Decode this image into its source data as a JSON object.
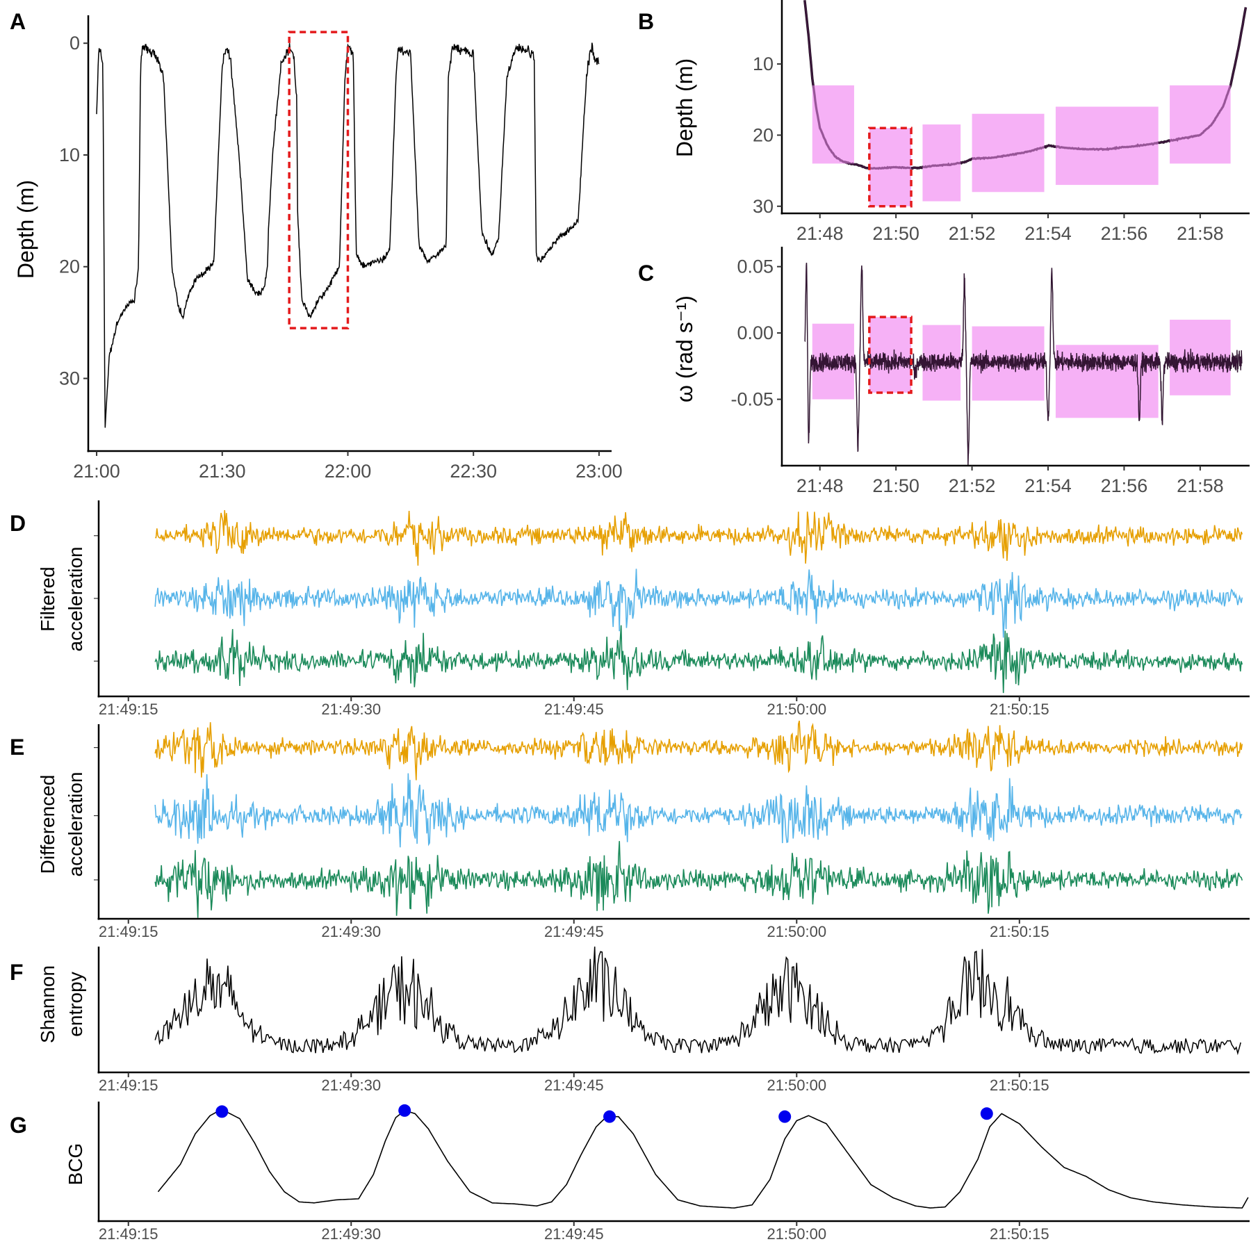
{
  "colors": {
    "ink": "#000000",
    "tick_text": "#4d4d4d",
    "highlight_fill": "#f4a3f4",
    "highlight_border": "#e41a1c",
    "accel_x": "#e69f00",
    "accel_y": "#56b4e9",
    "accel_z": "#1b8a5a",
    "peak_marker": "#0000ee"
  },
  "chart_data": [
    {
      "id": "A",
      "panel_label": "A",
      "type": "line",
      "xlabel": "",
      "ylabel": "Depth (m)",
      "y_reversed": true,
      "x_range_minutes": [
        1258,
        1383
      ],
      "ylim": [
        -2.5,
        36.5
      ],
      "x_ticks": [
        {
          "v": 1260,
          "label": "21:00"
        },
        {
          "v": 1290,
          "label": "21:30"
        },
        {
          "v": 1320,
          "label": "22:00"
        },
        {
          "v": 1350,
          "label": "22:30"
        },
        {
          "v": 1380,
          "label": "23:00"
        }
      ],
      "y_ticks": [
        {
          "v": 0,
          "label": "0"
        },
        {
          "v": 10,
          "label": "10"
        },
        {
          "v": 20,
          "label": "20"
        },
        {
          "v": 30,
          "label": "30"
        }
      ],
      "highlight_box": {
        "x": [
          1306,
          1320
        ],
        "y": [
          -1,
          25.5
        ]
      },
      "series": [
        {
          "x_minutes": [
            1260,
            1260.5,
            1261,
            1261.5,
            1262,
            1263,
            1265,
            1267,
            1269,
            1270,
            1270.5,
            1271,
            1272,
            1274,
            1276,
            1278,
            1279.5,
            1280.5,
            1281,
            1282,
            1284,
            1286,
            1288,
            1290,
            1290.8,
            1291,
            1292,
            1294,
            1296,
            1298,
            1300,
            1300.8,
            1301,
            1302,
            1304,
            1306,
            1306.5,
            1307,
            1307.8,
            1308,
            1309,
            1311,
            1313,
            1315,
            1318,
            1319.3,
            1320,
            1320.5,
            1321,
            1321.3,
            1322,
            1324,
            1326,
            1328,
            1330,
            1331.5,
            1332,
            1333,
            1335,
            1337,
            1339,
            1341,
            1343.5,
            1344,
            1345,
            1347,
            1350,
            1352,
            1354.5,
            1355,
            1356,
            1358,
            1360,
            1362,
            1364.5,
            1365,
            1366,
            1368,
            1370,
            1372,
            1375,
            1377,
            1378,
            1378.5,
            1379,
            1380
          ],
          "depth_m": [
            6.2,
            0.5,
            0.8,
            2,
            34.5,
            28,
            25,
            23.5,
            23,
            20,
            2,
            0.5,
            0.5,
            1,
            3,
            20,
            23.5,
            24.5,
            24,
            22.5,
            21,
            20.5,
            19.5,
            2,
            0.5,
            0.5,
            1.5,
            10,
            21,
            22.5,
            22,
            20,
            17,
            10,
            2,
            0.5,
            0.8,
            1,
            5,
            15,
            23,
            24.5,
            23,
            22,
            20,
            3,
            0.5,
            0.5,
            0.8,
            1,
            19,
            20,
            19.5,
            19.5,
            18.5,
            3,
            0.5,
            0.5,
            1,
            18,
            19.5,
            19,
            18,
            3,
            0.5,
            0.5,
            1,
            17,
            19,
            18.5,
            17.5,
            3,
            0.5,
            0.5,
            1,
            19,
            19.5,
            18.5,
            17.5,
            17,
            16,
            3,
            0.5,
            0.5,
            1.5,
            1.5
          ]
        }
      ]
    },
    {
      "id": "B",
      "panel_label": "B",
      "type": "line",
      "xlabel": "",
      "ylabel": "Depth (m)",
      "y_reversed": true,
      "x_range_minutes": [
        1307,
        1319.3
      ],
      "ylim": [
        1,
        31
      ],
      "x_ticks": [
        {
          "v": 1308,
          "label": "21:48"
        },
        {
          "v": 1310,
          "label": "21:50"
        },
        {
          "v": 1312,
          "label": "21:52"
        },
        {
          "v": 1314,
          "label": "21:54"
        },
        {
          "v": 1316,
          "label": "21:56"
        },
        {
          "v": 1318,
          "label": "21:58"
        }
      ],
      "y_ticks": [
        {
          "v": 10,
          "label": "10"
        },
        {
          "v": 20,
          "label": "20"
        },
        {
          "v": 30,
          "label": "30"
        }
      ],
      "shaded_windows": [
        {
          "x": [
            1307.8,
            1308.9
          ],
          "y": [
            13,
            24
          ]
        },
        {
          "x": [
            1309.3,
            1310.4
          ],
          "y": [
            19,
            30
          ]
        },
        {
          "x": [
            1310.7,
            1311.7
          ],
          "y": [
            18.5,
            29.3
          ]
        },
        {
          "x": [
            1312,
            1313.9
          ],
          "y": [
            17,
            28
          ]
        },
        {
          "x": [
            1314.2,
            1316.9
          ],
          "y": [
            16,
            27
          ]
        },
        {
          "x": [
            1317.2,
            1318.8
          ],
          "y": [
            13,
            24
          ]
        }
      ],
      "highlight_box": {
        "x": [
          1309.3,
          1310.4
        ],
        "y": [
          19,
          30
        ]
      },
      "series": [
        {
          "x_minutes": [
            1307.6,
            1307.7,
            1307.8,
            1307.9,
            1308,
            1308.2,
            1308.4,
            1308.6,
            1308.8,
            1309,
            1309.2,
            1309.5,
            1310,
            1310.3,
            1310.6,
            1311,
            1311.5,
            1311.8,
            1312,
            1312.5,
            1313,
            1313.5,
            1314,
            1314.5,
            1315,
            1315.5,
            1316,
            1316.5,
            1317,
            1317.5,
            1318,
            1318.3,
            1318.6,
            1318.8,
            1319,
            1319.2
          ],
          "depth_m": [
            1,
            6,
            12,
            16,
            19,
            21.5,
            23,
            23.7,
            24,
            24.2,
            24.6,
            24.7,
            24.5,
            24.6,
            24.6,
            24.3,
            24.1,
            23.8,
            23.3,
            23.2,
            22.8,
            22.3,
            21.5,
            21.8,
            22,
            22,
            21.7,
            21.4,
            21,
            20.5,
            20,
            18.5,
            16,
            13,
            8,
            2
          ]
        }
      ]
    },
    {
      "id": "C",
      "panel_label": "C",
      "type": "line",
      "xlabel": "",
      "ylabel": "ω (rad s⁻¹)",
      "x_range_minutes": [
        1307,
        1319.3
      ],
      "ylim": [
        -0.1,
        0.065
      ],
      "x_ticks": [
        {
          "v": 1308,
          "label": "21:48"
        },
        {
          "v": 1310,
          "label": "21:50"
        },
        {
          "v": 1312,
          "label": "21:52"
        },
        {
          "v": 1314,
          "label": "21:54"
        },
        {
          "v": 1316,
          "label": "21:56"
        },
        {
          "v": 1318,
          "label": "21:58"
        }
      ],
      "y_ticks": [
        {
          "v": 0.05,
          "label": "0.05"
        },
        {
          "v": 0,
          "label": "0.00"
        },
        {
          "v": -0.05,
          "label": "-0.05"
        }
      ],
      "shaded_windows": [
        {
          "x": [
            1307.8,
            1308.9
          ],
          "y": [
            -0.05,
            0.007
          ]
        },
        {
          "x": [
            1309.3,
            1310.4
          ],
          "y": [
            -0.045,
            0.012
          ]
        },
        {
          "x": [
            1310.7,
            1311.7
          ],
          "y": [
            -0.051,
            0.006
          ]
        },
        {
          "x": [
            1312,
            1313.9
          ],
          "y": [
            -0.051,
            0.005
          ]
        },
        {
          "x": [
            1314.2,
            1316.9
          ],
          "y": [
            -0.064,
            -0.009
          ]
        },
        {
          "x": [
            1317.2,
            1318.8
          ],
          "y": [
            -0.047,
            0.01
          ]
        }
      ],
      "highlight_box": {
        "x": [
          1309.3,
          1310.4
        ],
        "y": [
          -0.045,
          0.012
        ]
      },
      "series": [
        {
          "baseline": -0.022,
          "noise_sd": 0.007,
          "spikes": [
            {
              "x": 1307.65,
              "value": 0.058
            },
            {
              "x": 1307.7,
              "value": -0.09
            },
            {
              "x": 1309.0,
              "value": -0.088
            },
            {
              "x": 1309.1,
              "value": 0.051
            },
            {
              "x": 1310.5,
              "value": 0.03
            },
            {
              "x": 1310.5,
              "value": -0.084
            },
            {
              "x": 1311.8,
              "value": 0.04
            },
            {
              "x": 1311.9,
              "value": -0.094
            },
            {
              "x": 1314.0,
              "value": -0.065
            },
            {
              "x": 1314.1,
              "value": 0.05
            },
            {
              "x": 1316.4,
              "value": -0.065
            },
            {
              "x": 1317.0,
              "value": -0.065
            }
          ]
        }
      ]
    },
    {
      "id": "D",
      "panel_label": "D",
      "type": "line",
      "xlabel": "",
      "ylabel": "Filtered acceleration",
      "ylabel_lines": [
        "Filtered",
        "acceleration"
      ],
      "x_range_seconds": [
        78913,
        78990.5
      ],
      "x_ticks": [
        {
          "v": 78915,
          "label": "21:49:15"
        },
        {
          "v": 78930,
          "label": "21:49:30"
        },
        {
          "v": 78945,
          "label": "21:49:45"
        },
        {
          "v": 78960,
          "label": "21:50:00"
        },
        {
          "v": 78975,
          "label": "21:50:15"
        }
      ],
      "series": [
        {
          "axis": "x",
          "color_key": "accel_x",
          "baseline": 0.18,
          "noise_amp": 0.045,
          "bursts": [
            78922,
            78934.5,
            78948,
            78961,
            78974
          ]
        },
        {
          "axis": "y",
          "color_key": "accel_y",
          "baseline": 0.5,
          "noise_amp": 0.05,
          "bursts": [
            78922,
            78934.5,
            78948,
            78961,
            78974
          ]
        },
        {
          "axis": "z",
          "color_key": "accel_z",
          "baseline": 0.82,
          "noise_amp": 0.05,
          "bursts": [
            78922,
            78934.5,
            78948,
            78961,
            78974
          ]
        }
      ]
    },
    {
      "id": "E",
      "panel_label": "E",
      "type": "line",
      "xlabel": "",
      "ylabel": "Differenced acceleration",
      "ylabel_lines": [
        "Differenced",
        "acceleration"
      ],
      "x_range_seconds": [
        78913,
        78990.5
      ],
      "x_ticks": [
        {
          "v": 78915,
          "label": "21:49:15"
        },
        {
          "v": 78930,
          "label": "21:49:30"
        },
        {
          "v": 78945,
          "label": "21:49:45"
        },
        {
          "v": 78960,
          "label": "21:50:00"
        },
        {
          "v": 78975,
          "label": "21:50:15"
        }
      ],
      "series": [
        {
          "axis": "x",
          "color_key": "accel_x",
          "baseline": 0.12,
          "noise_amp": 0.04,
          "bursts": [
            78920,
            78934,
            78947,
            78960,
            78973
          ]
        },
        {
          "axis": "y",
          "color_key": "accel_y",
          "baseline": 0.47,
          "noise_amp": 0.05,
          "bursts": [
            78920,
            78934,
            78947,
            78960,
            78973
          ]
        },
        {
          "axis": "z",
          "color_key": "accel_z",
          "baseline": 0.8,
          "noise_amp": 0.05,
          "bursts": [
            78920,
            78934,
            78947,
            78960,
            78973
          ]
        }
      ]
    },
    {
      "id": "F",
      "panel_label": "F",
      "type": "line",
      "xlabel": "",
      "ylabel": "Shannon entropy",
      "ylabel_lines": [
        "Shannon",
        "entropy"
      ],
      "x_range_seconds": [
        78913,
        78990.5
      ],
      "x_ticks": [
        {
          "v": 78915,
          "label": "21:49:15"
        },
        {
          "v": 78930,
          "label": "21:49:30"
        },
        {
          "v": 78945,
          "label": "21:49:45"
        },
        {
          "v": 78960,
          "label": "21:50:00"
        },
        {
          "v": 78975,
          "label": "21:50:15"
        }
      ],
      "series": [
        {
          "baseline": 0.15,
          "peaks": [
            {
              "x": 78920.5,
              "height": 0.75
            },
            {
              "x": 78933.5,
              "height": 0.72
            },
            {
              "x": 78946.5,
              "height": 0.8
            },
            {
              "x": 78959.5,
              "height": 0.72
            },
            {
              "x": 78972.5,
              "height": 0.82
            }
          ]
        }
      ]
    },
    {
      "id": "G",
      "panel_label": "G",
      "type": "line",
      "xlabel": "",
      "ylabel": "BCG",
      "x_range_seconds": [
        78913,
        78990.5
      ],
      "x_ticks": [
        {
          "v": 78915,
          "label": "21:49:15"
        },
        {
          "v": 78930,
          "label": "21:49:30"
        },
        {
          "v": 78945,
          "label": "21:49:45"
        },
        {
          "v": 78960,
          "label": "21:50:00"
        },
        {
          "v": 78975,
          "label": "21:50:15"
        }
      ],
      "series": [
        {
          "t": [
            78917,
            78918.5,
            78919.5,
            78920.5,
            78921,
            78921.7,
            78922.5,
            78923.5,
            78924.5,
            78925.5,
            78926.5,
            78927.5,
            78929,
            78930.5,
            78931.5,
            78932.3,
            78933,
            78933.6,
            78934.3,
            78935.2,
            78936.5,
            78938,
            78939.5,
            78941,
            78942.5,
            78943.5,
            78944.5,
            78945.5,
            78946.5,
            78947.2,
            78948,
            78949,
            78950.5,
            78952,
            78953.5,
            78954.5,
            78955.8,
            78957,
            78958.2,
            78959.2,
            78960,
            78960.8,
            78962,
            78963.5,
            78965,
            78966.5,
            78968,
            78969,
            78970,
            78971,
            78972.2,
            78973,
            78973.8,
            78975,
            78976.5,
            78978,
            78979.5,
            78981,
            78982.5,
            78984,
            78986,
            78988,
            78990,
            78990.5
          ],
          "value": [
            0.18,
            0.45,
            0.75,
            0.93,
            0.97,
            0.96,
            0.9,
            0.66,
            0.38,
            0.18,
            0.08,
            0.07,
            0.1,
            0.11,
            0.35,
            0.68,
            0.91,
            0.98,
            0.95,
            0.8,
            0.48,
            0.18,
            0.07,
            0.06,
            0.04,
            0.08,
            0.25,
            0.55,
            0.82,
            0.92,
            0.92,
            0.75,
            0.35,
            0.1,
            0.04,
            0.03,
            0.02,
            0.05,
            0.3,
            0.7,
            0.88,
            0.93,
            0.85,
            0.55,
            0.25,
            0.12,
            0.04,
            0.02,
            0.03,
            0.18,
            0.5,
            0.82,
            0.95,
            0.85,
            0.62,
            0.42,
            0.33,
            0.2,
            0.12,
            0.08,
            0.05,
            0.03,
            0.02,
            0.15
          ]
        }
      ],
      "peak_markers": [
        {
          "t": 78921.3,
          "value": 0.97
        },
        {
          "t": 78933.6,
          "value": 0.98
        },
        {
          "t": 78947.4,
          "value": 0.92
        },
        {
          "t": 78959.2,
          "value": 0.92
        },
        {
          "t": 78972.8,
          "value": 0.95
        }
      ]
    }
  ]
}
